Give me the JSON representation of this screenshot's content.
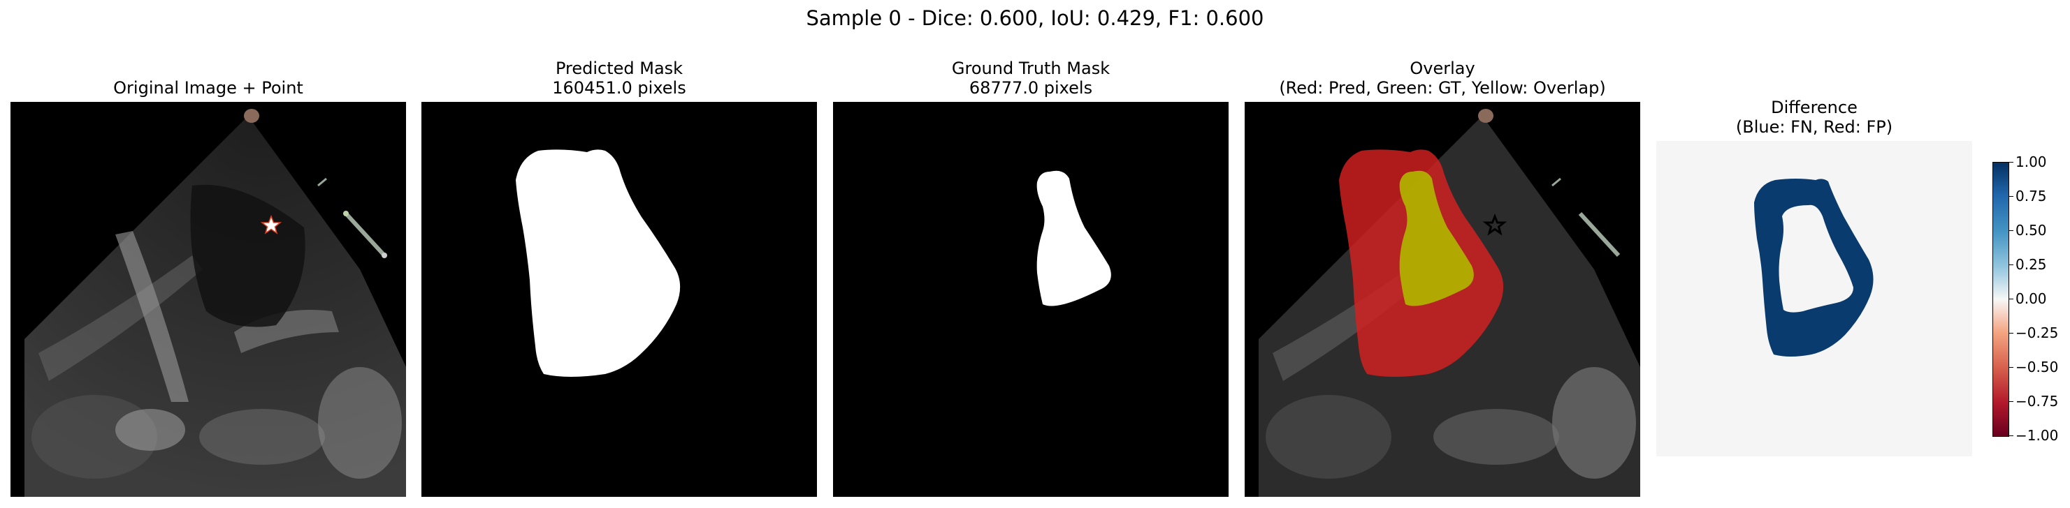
{
  "figure": {
    "suptitle": "Sample 0 - Dice: 0.600, IoU: 0.429, F1: 0.600"
  },
  "panels": [
    {
      "id": "original",
      "title": "Original Image + Point"
    },
    {
      "id": "pred",
      "title_line1": "Predicted Mask",
      "title_line2": "160451.0 pixels"
    },
    {
      "id": "gt",
      "title_line1": "Ground Truth Mask",
      "title_line2": "68777.0 pixels"
    },
    {
      "id": "overlay",
      "title_line1": "Overlay",
      "title_line2": "(Red: Pred, Green: GT, Yellow: Overlap)"
    },
    {
      "id": "difference",
      "title_line1": "Difference",
      "title_line2": "(Blue: FN, Red: FP)"
    }
  ],
  "colorbar": {
    "range": [
      -1.0,
      1.0
    ],
    "ticks": [
      "1.00",
      "0.75",
      "0.50",
      "0.25",
      "0.00",
      "−0.25",
      "−0.50",
      "−0.75",
      "−1.00"
    ],
    "colors": {
      "top": "#053061",
      "upper": "#4393c3",
      "mid": "#f7f7f7",
      "lower": "#d6604d",
      "bottom": "#67001f"
    }
  },
  "colors": {
    "pred_mask": "#ff0000",
    "gt_mask": "#00ff00",
    "overlap": "#b3b300",
    "difference_fn": "#0a3b6e",
    "difference_bg": "#f5f5f5",
    "point_marker": "#ffffff"
  }
}
